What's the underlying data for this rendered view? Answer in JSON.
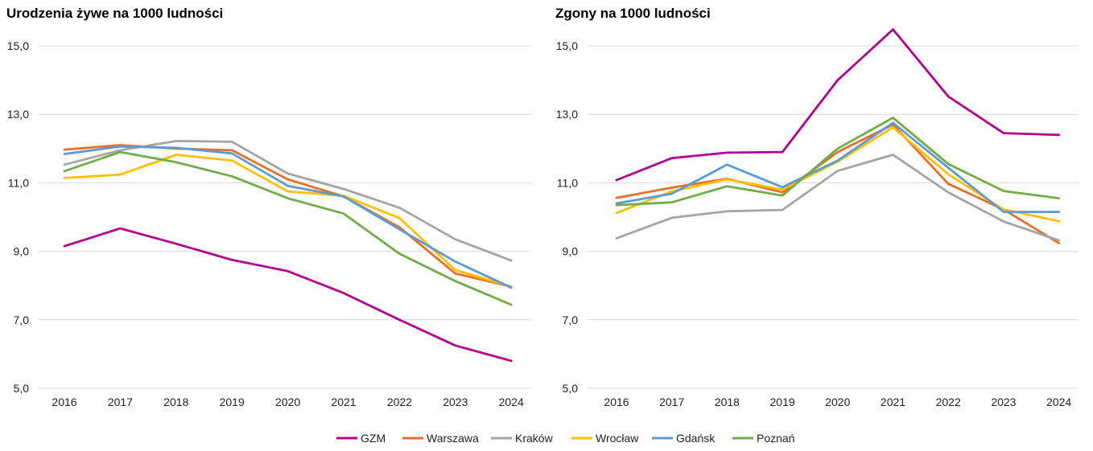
{
  "legend": {
    "items": [
      {
        "name": "GZM",
        "color": "#b5008f"
      },
      {
        "name": "Warszawa",
        "color": "#ea7024"
      },
      {
        "name": "Kraków",
        "color": "#a5a5a5"
      },
      {
        "name": "Wrocław",
        "color": "#ffc000"
      },
      {
        "name": "Gdańsk",
        "color": "#5b9bd5"
      },
      {
        "name": "Poznań",
        "color": "#70ad47"
      }
    ]
  },
  "chart_data": [
    {
      "type": "line",
      "title": "Urodzenia żywe na 1000 ludności",
      "xlabel": "",
      "ylabel": "",
      "ylim": [
        5,
        15
      ],
      "yticks": [
        5,
        7,
        9,
        11,
        13,
        15
      ],
      "ytick_labels": [
        "5,0",
        "7,0",
        "9,0",
        "11,0",
        "13,0",
        "15,0"
      ],
      "categories": [
        "2016",
        "2017",
        "2018",
        "2019",
        "2020",
        "2021",
        "2022",
        "2023",
        "2024"
      ],
      "series": [
        {
          "name": "GZM",
          "values": [
            9.15,
            9.67,
            9.22,
            8.75,
            8.42,
            7.78,
            7.0,
            6.25,
            5.8
          ]
        },
        {
          "name": "Warszawa",
          "values": [
            11.97,
            12.1,
            12.0,
            11.95,
            11.1,
            10.6,
            9.7,
            8.35,
            7.97
          ]
        },
        {
          "name": "Kraków",
          "values": [
            11.53,
            11.95,
            12.22,
            12.2,
            11.27,
            10.82,
            10.27,
            9.35,
            8.73
          ]
        },
        {
          "name": "Wrocław",
          "values": [
            11.14,
            11.24,
            11.82,
            11.65,
            10.75,
            10.62,
            9.97,
            8.45,
            7.97
          ]
        },
        {
          "name": "Gdańsk",
          "values": [
            11.84,
            12.06,
            12.02,
            11.86,
            10.91,
            10.6,
            9.64,
            8.7,
            7.94
          ]
        },
        {
          "name": "Poznań",
          "values": [
            11.34,
            11.9,
            11.6,
            11.19,
            10.55,
            10.1,
            8.93,
            8.13,
            7.44
          ]
        }
      ]
    },
    {
      "type": "line",
      "title": "Zgony na 1000 ludności",
      "xlabel": "",
      "ylabel": "",
      "ylim": [
        5,
        15
      ],
      "yticks": [
        5,
        7,
        9,
        11,
        13,
        15
      ],
      "ytick_labels": [
        "5,0",
        "7,0",
        "9,0",
        "11,0",
        "13,0",
        "15,0"
      ],
      "categories": [
        "2016",
        "2017",
        "2018",
        "2019",
        "2020",
        "2021",
        "2022",
        "2023",
        "2024"
      ],
      "series": [
        {
          "name": "GZM",
          "values": [
            11.08,
            11.72,
            11.88,
            11.9,
            14.0,
            15.48,
            13.52,
            12.45,
            12.4
          ]
        },
        {
          "name": "Warszawa",
          "values": [
            10.56,
            10.86,
            11.12,
            10.72,
            11.9,
            12.7,
            10.97,
            10.22,
            9.24
          ]
        },
        {
          "name": "Kraków",
          "values": [
            9.38,
            9.98,
            10.17,
            10.21,
            11.35,
            11.82,
            10.72,
            9.87,
            9.32
          ]
        },
        {
          "name": "Wrocław",
          "values": [
            10.12,
            10.75,
            11.1,
            10.8,
            11.62,
            12.62,
            11.25,
            10.22,
            9.88
          ]
        },
        {
          "name": "Gdańsk",
          "values": [
            10.4,
            10.68,
            11.53,
            10.87,
            11.65,
            12.75,
            11.44,
            10.15,
            10.15
          ]
        },
        {
          "name": "Poznań",
          "values": [
            10.35,
            10.43,
            10.9,
            10.63,
            12.0,
            12.9,
            11.55,
            10.76,
            10.55
          ]
        }
      ]
    }
  ]
}
